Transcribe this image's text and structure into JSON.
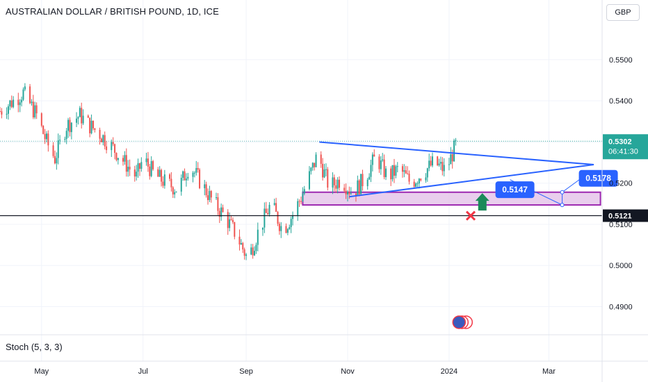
{
  "header": {
    "title": "AUSTRALIAN DOLLAR / BRITISH POUND, 1D, ICE",
    "currency": "GBP"
  },
  "indicator": {
    "label": "Stoch (5, 3, 3)"
  },
  "colors": {
    "up": "#26a69a",
    "down": "#ef5350",
    "trend": "#2962ff",
    "zone_fill": "#e1bee7",
    "zone_border": "#9c27b0",
    "arrow": "#1b8a5a",
    "cross": "#f23645",
    "badge": "#2962ff",
    "price_dotted": "#26a69a"
  },
  "chart_data": {
    "type": "candlestick",
    "title": "AUSTRALIAN DOLLAR / BRITISH POUND, 1D, ICE",
    "x_axis_labels": [
      "May",
      "Jul",
      "Sep",
      "Nov",
      "2024",
      "Mar"
    ],
    "y_axis_labels": [
      "0.5500",
      "0.5400",
      "0.5300",
      "0.5200",
      "0.5100",
      "0.5000",
      "0.4900"
    ],
    "ylim": [
      0.4835,
      0.5645
    ],
    "y_ticks": [
      0.55,
      0.54,
      0.53,
      0.52,
      0.51,
      0.5,
      0.49
    ],
    "x_months": [
      {
        "label": "May",
        "date": "2023-05-01"
      },
      {
        "label": "Jul",
        "date": "2023-07-01"
      },
      {
        "label": "Sep",
        "date": "2023-09-01"
      },
      {
        "label": "Nov",
        "date": "2023-11-01"
      },
      {
        "label": "2024",
        "date": "2024-01-01"
      },
      {
        "label": "Mar",
        "date": "2024-03-01"
      }
    ],
    "x_range": [
      "2023-04-06",
      "2024-04-02"
    ],
    "close_path": [
      [
        "2023-04-06",
        0.5375
      ],
      [
        "2023-04-14",
        0.54
      ],
      [
        "2023-04-20",
        0.542
      ],
      [
        "2023-04-28",
        0.5365
      ],
      [
        "2023-05-04",
        0.53
      ],
      [
        "2023-05-09",
        0.526
      ],
      [
        "2023-05-16",
        0.534
      ],
      [
        "2023-05-24",
        0.5365
      ],
      [
        "2023-05-30",
        0.534
      ],
      [
        "2023-06-05",
        0.532
      ],
      [
        "2023-06-13",
        0.5285
      ],
      [
        "2023-06-20",
        0.525
      ],
      [
        "2023-06-27",
        0.5215
      ],
      [
        "2023-07-01",
        0.526
      ],
      [
        "2023-07-08",
        0.522
      ],
      [
        "2023-07-15",
        0.52
      ],
      [
        "2023-07-22",
        0.5185
      ],
      [
        "2023-07-29",
        0.5245
      ],
      [
        "2023-08-05",
        0.52
      ],
      [
        "2023-08-12",
        0.5155
      ],
      [
        "2023-08-19",
        0.512
      ],
      [
        "2023-08-26",
        0.5075
      ],
      [
        "2023-09-02",
        0.5015
      ],
      [
        "2023-09-09",
        0.509
      ],
      [
        "2023-09-16",
        0.515
      ],
      [
        "2023-09-23",
        0.5085
      ],
      [
        "2023-09-30",
        0.513
      ],
      [
        "2023-10-07",
        0.5195
      ],
      [
        "2023-10-14",
        0.527
      ],
      [
        "2023-10-21",
        0.519
      ],
      [
        "2023-10-28",
        0.521
      ],
      [
        "2023-11-04",
        0.5175
      ],
      [
        "2023-11-11",
        0.521
      ],
      [
        "2023-11-18",
        0.5265
      ],
      [
        "2023-11-25",
        0.5215
      ],
      [
        "2023-12-02",
        0.5235
      ],
      [
        "2023-12-09",
        0.52
      ],
      [
        "2023-12-16",
        0.5225
      ],
      [
        "2023-12-23",
        0.525
      ],
      [
        "2023-12-30",
        0.523
      ],
      [
        "2024-01-06",
        0.5302
      ]
    ],
    "last_price": 0.5302,
    "last_price_label": "0.5302",
    "countdown": "06:41:30",
    "horizontal_line": {
      "value": 0.5121,
      "label": "0.5121"
    },
    "demand_zone": {
      "from_date": "2023-10-05",
      "to_date": "2024-04-01",
      "low": 0.5147,
      "high": 0.5178
    },
    "triangle_upper": [
      [
        "2023-10-15",
        0.53
      ],
      [
        "2024-03-28",
        0.5245
      ]
    ],
    "triangle_lower": [
      [
        "2023-11-02",
        0.5167
      ],
      [
        "2024-03-28",
        0.5245
      ]
    ],
    "annotations": [
      {
        "label": "0.5147",
        "anchor_date": "2024-03-09",
        "anchor_value": 0.5147
      },
      {
        "label": "0.5178",
        "anchor_date": "2024-03-09",
        "anchor_value": 0.5178
      }
    ],
    "markers": {
      "up_arrow_date": "2024-01-21",
      "cross_date": "2024-01-14",
      "cross_value": 0.5121
    }
  }
}
